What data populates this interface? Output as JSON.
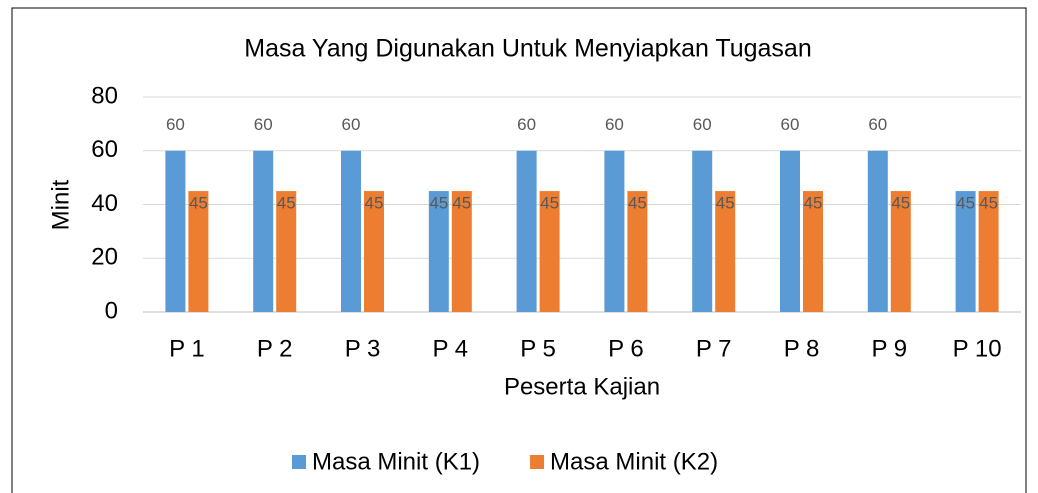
{
  "chart_data": {
    "type": "bar",
    "title": "Masa Yang Digunakan Untuk Menyiapkan Tugasan",
    "x_label": "Peserta Kajian",
    "y_label": "Minit",
    "categories": [
      "P 1",
      "P 2",
      "P 3",
      "P 4",
      "P 5",
      "P 6",
      "P 7",
      "P 8",
      "P 9",
      "P 10"
    ],
    "series": [
      {
        "name": "Masa Minit (K1)",
        "color": "#5b9bd5",
        "values": [
          60,
          60,
          60,
          45,
          60,
          60,
          60,
          60,
          60,
          45
        ]
      },
      {
        "name": "Masa Minit (K2)",
        "color": "#ed7d31",
        "values": [
          45,
          45,
          45,
          45,
          45,
          45,
          45,
          45,
          45,
          45
        ]
      }
    ],
    "ylim": [
      0,
      80
    ],
    "yticks": [
      0,
      20,
      40,
      60,
      80
    ],
    "grid": true,
    "legend": "bottom"
  }
}
